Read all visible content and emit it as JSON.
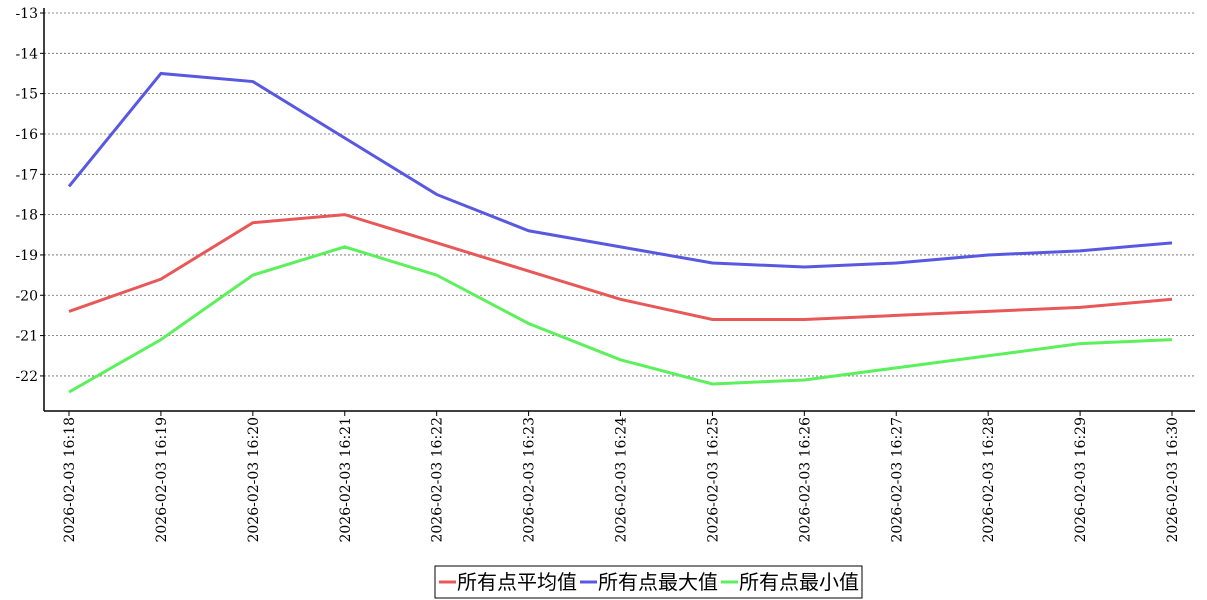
{
  "chart_data": {
    "type": "line",
    "categories": [
      "2026-02-03 16:18",
      "2026-02-03 16:19",
      "2026-02-03 16:20",
      "2026-02-03 16:21",
      "2026-02-03 16:22",
      "2026-02-03 16:23",
      "2026-02-03 16:24",
      "2026-02-03 16:25",
      "2026-02-03 16:26",
      "2026-02-03 16:27",
      "2026-02-03 16:28",
      "2026-02-03 16:29",
      "2026-02-03 16:30"
    ],
    "series": [
      {
        "name": "所有点平均值",
        "color": "#e85858",
        "values": [
          -20.4,
          -19.6,
          -18.2,
          -18.0,
          -18.7,
          -19.4,
          -20.1,
          -20.6,
          -20.6,
          -20.5,
          -20.4,
          -20.3,
          -20.1
        ]
      },
      {
        "name": "所有点最大值",
        "color": "#5858e0",
        "values": [
          -17.3,
          -14.5,
          -14.7,
          -16.1,
          -17.5,
          -18.4,
          -18.8,
          -19.2,
          -19.3,
          -19.2,
          -19.0,
          -18.9,
          -18.7
        ]
      },
      {
        "name": "所有点最小值",
        "color": "#5cf05c",
        "values": [
          -22.4,
          -21.1,
          -19.5,
          -18.8,
          -19.5,
          -20.7,
          -21.6,
          -22.2,
          -22.1,
          -21.8,
          -21.5,
          -21.2,
          -21.1
        ]
      }
    ],
    "ylim": [
      -22.87,
      -13
    ],
    "yticks": [
      -13,
      -14,
      -15,
      -16,
      -17,
      -18,
      -19,
      -20,
      -21,
      -22
    ],
    "grid": true,
    "legend": "bottom"
  }
}
